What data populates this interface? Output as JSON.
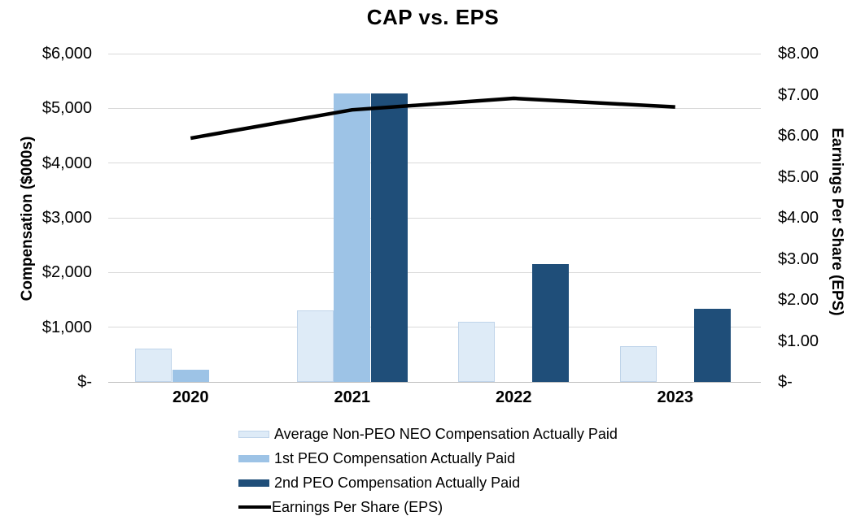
{
  "chart_data": {
    "type": "combo-bar-line",
    "title": "CAP vs. EPS",
    "categories": [
      "2020",
      "2021",
      "2022",
      "2023"
    ],
    "series": [
      {
        "type": "bar",
        "name": "Average Non-PEO NEO Compensation Actually Paid",
        "axis": "left",
        "color": "#DEEBF7",
        "border_color": "#BFD4EA",
        "values": [
          615,
          1305,
          1100,
          660
        ]
      },
      {
        "type": "bar",
        "name": "1st PEO Compensation Actually Paid",
        "axis": "left",
        "color": "#9DC3E6",
        "border_color": "#9DC3E6",
        "values": [
          225,
          5265,
          null,
          null
        ]
      },
      {
        "type": "bar",
        "name": "2nd PEO Compensation Actually Paid",
        "axis": "left",
        "color": "#1F4E79",
        "border_color": "#1F4E79",
        "values": [
          null,
          5265,
          2150,
          1330
        ]
      },
      {
        "type": "line",
        "name": "Earnings Per Share (EPS)",
        "axis": "right",
        "color": "#000000",
        "values": [
          5.94,
          6.63,
          6.91,
          6.7
        ]
      }
    ],
    "left_axis": {
      "title": "Compensation ($000s)",
      "min": 0,
      "max": 6000,
      "tick_step": 1000,
      "tick_labels": [
        "$-",
        "$1,000",
        "$2,000",
        "$3,000",
        "$4,000",
        "$5,000",
        "$6,000"
      ]
    },
    "right_axis": {
      "title": "Earnings Per Share (EPS)",
      "min": 0,
      "max": 8,
      "tick_step": 1,
      "tick_labels": [
        "$-",
        "$1.00",
        "$2.00",
        "$3.00",
        "$4.00",
        "$5.00",
        "$6.00",
        "$7.00",
        "$8.00"
      ]
    },
    "grid": true,
    "legend_position": "bottom"
  }
}
